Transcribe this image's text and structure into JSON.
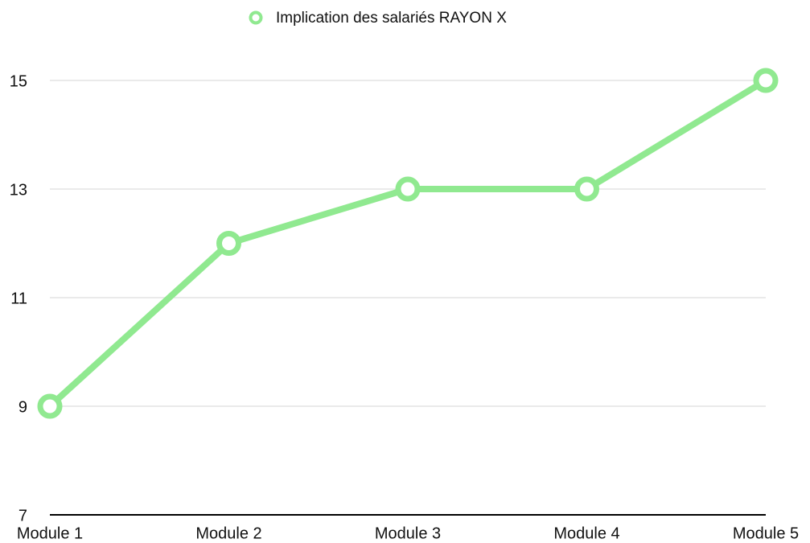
{
  "chart_data": {
    "type": "line",
    "categories": [
      "Module 1",
      "Module 2",
      "Module 3",
      "Module 4",
      "Module 5"
    ],
    "series": [
      {
        "name": "Implication des salariés RAYON X",
        "color": "#90e990",
        "values": [
          9,
          12,
          13,
          13,
          15
        ]
      }
    ],
    "ylim": [
      7,
      15
    ],
    "yticks": [
      7,
      9,
      11,
      13,
      15
    ],
    "grid": true,
    "legend": "top"
  }
}
